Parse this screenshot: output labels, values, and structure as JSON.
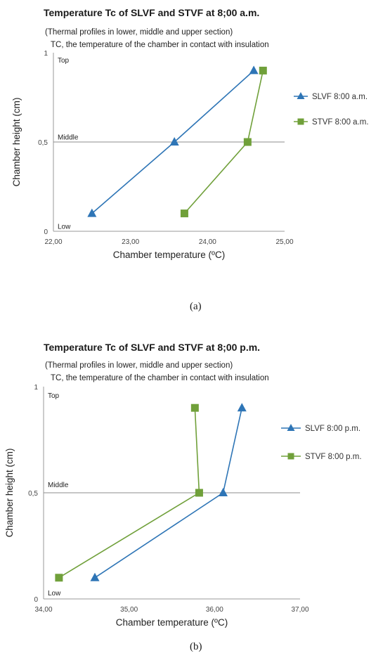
{
  "figures": [
    {
      "caption": "(a)",
      "chart_data": {
        "type": "line",
        "title": "Temperature Tc of SLVF and STVF at 8;00 a.m.",
        "subtitle": "(Thermal profiles in lower, middle and upper section)",
        "note": "TC, the temperature of the chamber in contact with insulation",
        "xlabel": "Chamber temperature (ºC)",
        "ylabel": "Chamber height (cm)",
        "xlim": [
          22,
          25
        ],
        "ylim": [
          0,
          1
        ],
        "x_ticks": [
          "22,00",
          "23,00",
          "24,00",
          "25,00"
        ],
        "y_ticks": [
          "0",
          "0,5",
          "1"
        ],
        "region_labels": [
          {
            "text": "Top",
            "y": 0.96
          },
          {
            "text": "Middle",
            "y": 0.53
          },
          {
            "text": "Low",
            "y": 0.03
          }
        ],
        "reference_line_y": 0.5,
        "legend_position": "right",
        "series": [
          {
            "name": "SLVF 8:00 a.m.",
            "color": "#2e75b6",
            "marker": "triangle",
            "points": [
              {
                "x": 22.5,
                "y": 0.1
              },
              {
                "x": 23.57,
                "y": 0.5
              },
              {
                "x": 24.6,
                "y": 0.9
              }
            ]
          },
          {
            "name": "STVF 8:00 a.m.",
            "color": "#70a03a",
            "marker": "square",
            "points": [
              {
                "x": 23.7,
                "y": 0.1
              },
              {
                "x": 24.52,
                "y": 0.5
              },
              {
                "x": 24.72,
                "y": 0.9
              }
            ]
          }
        ]
      }
    },
    {
      "caption": "(b)",
      "chart_data": {
        "type": "line",
        "title": "Temperature Tc of SLVF and STVF at 8;00 p.m.",
        "subtitle": "(Thermal profiles in lower, middle and upper section)",
        "note": "TC, the temperature of the chamber in contact with insulation",
        "xlabel": "Chamber temperature (ºC)",
        "ylabel": "Chamber height (cm)",
        "xlim": [
          34,
          37
        ],
        "ylim": [
          0,
          1
        ],
        "x_ticks": [
          "34,00",
          "35,00",
          "36,00",
          "37,00"
        ],
        "y_ticks": [
          "0",
          "0,5",
          "1"
        ],
        "region_labels": [
          {
            "text": "Top",
            "y": 0.96
          },
          {
            "text": "Middle",
            "y": 0.54
          },
          {
            "text": "Low",
            "y": 0.03
          }
        ],
        "reference_line_y": 0.5,
        "legend_position": "right",
        "series": [
          {
            "name": "SLVF 8:00 p.m.",
            "color": "#2e75b6",
            "marker": "triangle",
            "points": [
              {
                "x": 34.6,
                "y": 0.1
              },
              {
                "x": 36.1,
                "y": 0.5
              },
              {
                "x": 36.32,
                "y": 0.9
              }
            ]
          },
          {
            "name": "STVF 8:00 p.m.",
            "color": "#70a03a",
            "marker": "square",
            "points": [
              {
                "x": 34.18,
                "y": 0.1
              },
              {
                "x": 35.82,
                "y": 0.5
              },
              {
                "x": 35.77,
                "y": 0.9
              }
            ]
          }
        ]
      }
    }
  ]
}
